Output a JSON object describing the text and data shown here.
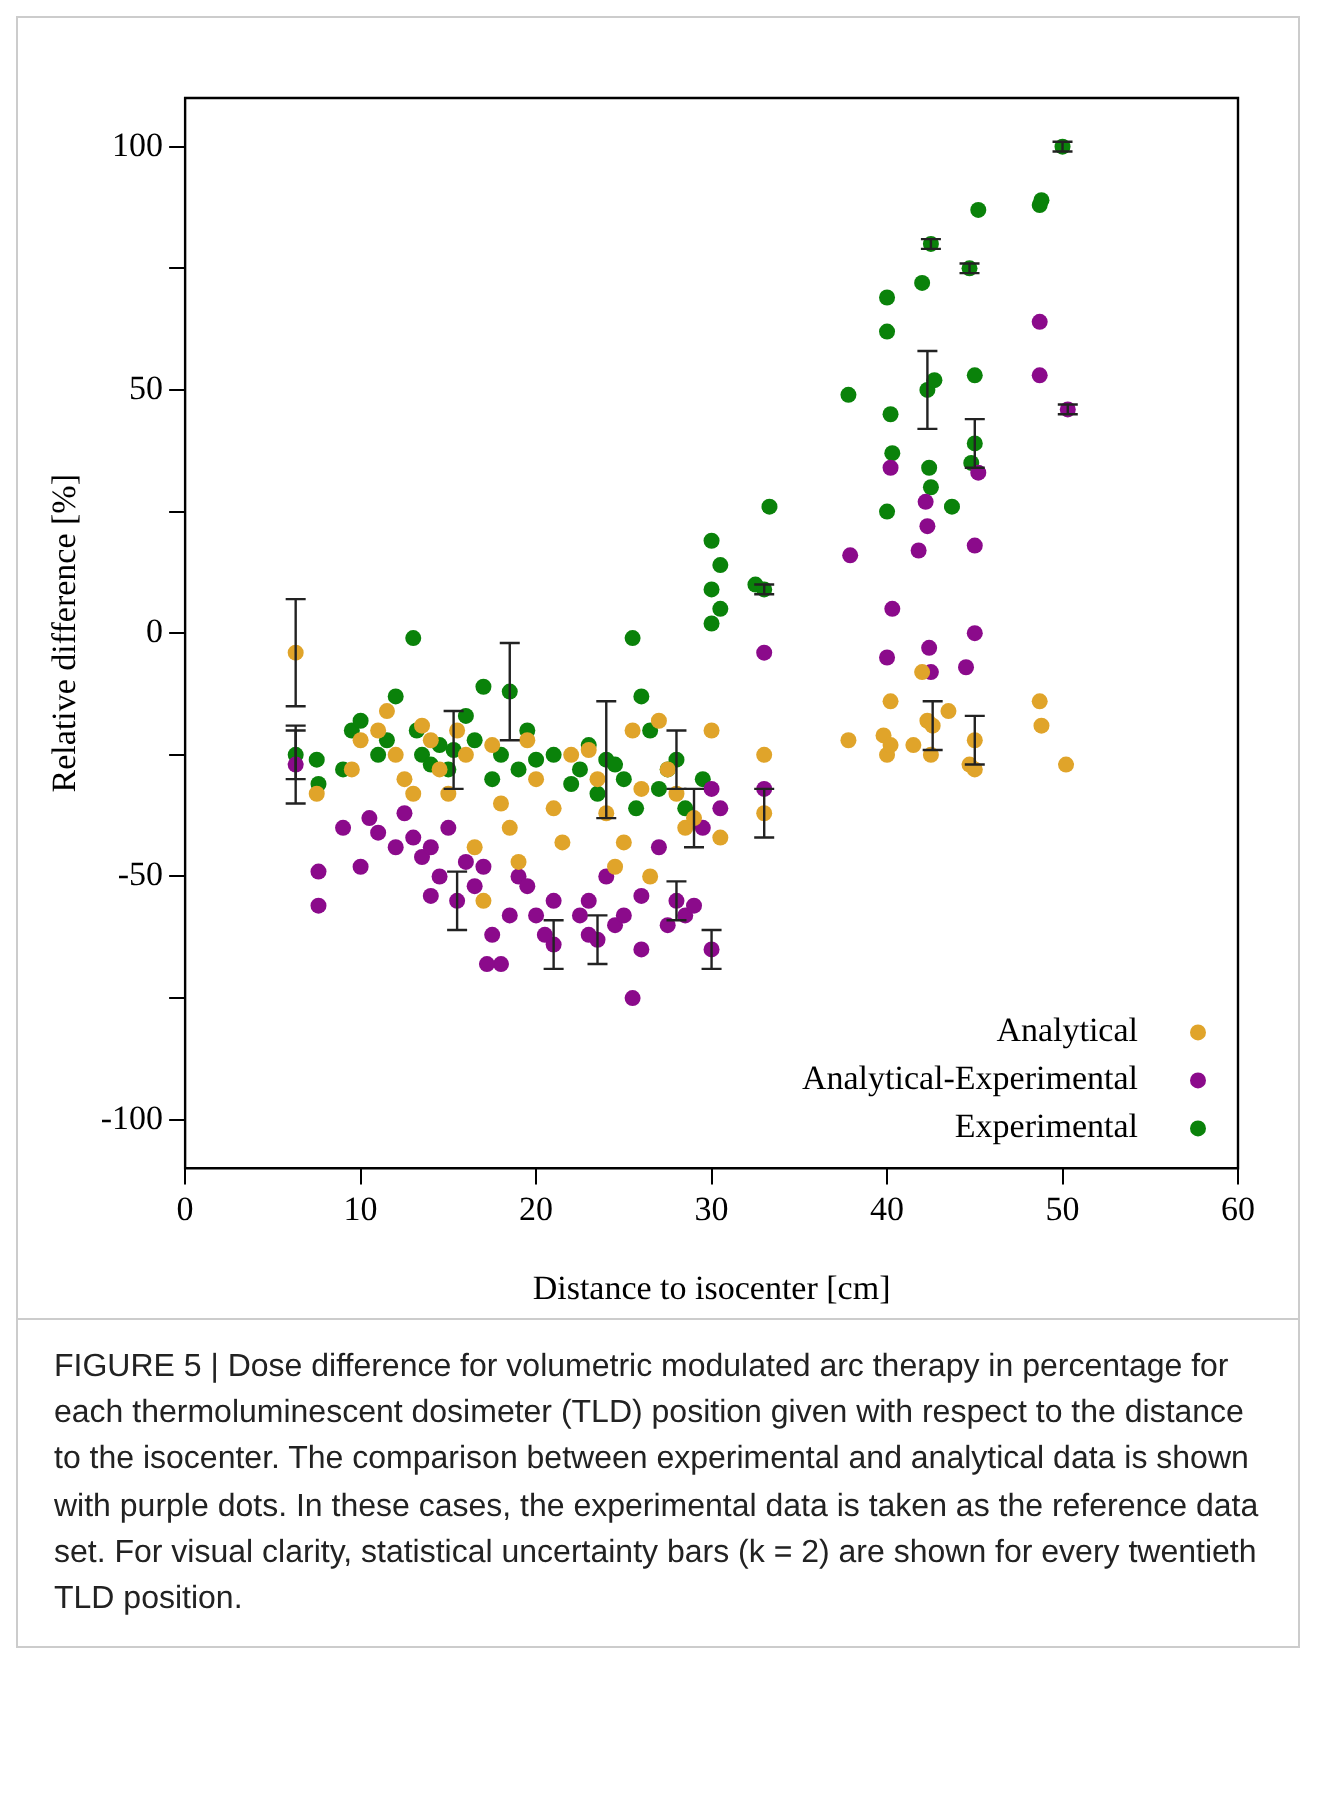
{
  "chart_data": {
    "type": "scatter",
    "xlabel": "Distance to isocenter [cm]",
    "ylabel": "Relative difference [%]",
    "xlim": [
      0,
      60
    ],
    "xticks": [
      0,
      10,
      20,
      30,
      40,
      50,
      60
    ],
    "ylim": [
      -110,
      110
    ],
    "yticks": [
      -100,
      {
        "value": -75,
        "label": null
      },
      -50,
      {
        "value": -25,
        "label": null
      },
      0,
      {
        "value": 25,
        "label": null
      },
      50,
      {
        "value": 75,
        "label": null
      },
      100
    ],
    "grid": false,
    "legend": "bottom right",
    "marker": "circle",
    "series": [
      {
        "name": "Analytical",
        "color": "#e0a42a",
        "x": [
          6.3,
          7.5,
          9.5,
          10,
          11,
          11.5,
          12,
          12.5,
          13,
          13.5,
          14,
          14.5,
          15,
          15.5,
          16,
          16.5,
          17,
          17.5,
          18,
          18.5,
          19,
          19.5,
          20,
          21,
          21.5,
          22,
          23,
          23.5,
          24,
          24.5,
          25,
          25.5,
          26,
          26.5,
          27,
          27.5,
          28,
          28.5,
          29,
          30,
          30.5,
          33,
          33,
          37.8,
          39.8,
          40,
          40.2,
          41.5,
          42,
          42.3,
          42.5,
          43.5,
          44.7,
          45,
          48.7,
          48.8,
          50.2,
          42.6,
          45,
          40.2
        ],
        "values": [
          -4,
          -33,
          -28,
          -22,
          -20,
          -16,
          -25,
          -30,
          -33,
          -19,
          -22,
          -28,
          -33,
          -20,
          -25,
          -44,
          -55,
          -23,
          -35,
          -40,
          -47,
          -22,
          -30,
          -36,
          -43,
          -25,
          -24,
          -30,
          -37,
          -48,
          -43,
          -20,
          -32,
          -50,
          -18,
          -28,
          -33,
          -40,
          -38,
          -20,
          -42,
          -25,
          -37,
          -22,
          -21,
          -25,
          -14,
          -23,
          -8,
          -18,
          -25,
          -16,
          -27,
          -28,
          -14,
          -19,
          -27,
          -19,
          -22,
          -23
        ],
        "errors": [
          11,
          null,
          null,
          null,
          null,
          null,
          null,
          null,
          null,
          null,
          null,
          null,
          null,
          null,
          null,
          null,
          null,
          null,
          null,
          null,
          null,
          null,
          null,
          null,
          null,
          null,
          null,
          null,
          null,
          null,
          null,
          null,
          null,
          null,
          null,
          null,
          null,
          null,
          6,
          null,
          null,
          null,
          5,
          null,
          null,
          null,
          null,
          null,
          null,
          null,
          null,
          null,
          null,
          null,
          null,
          null,
          null,
          5,
          5,
          null
        ]
      },
      {
        "name": "Analytical-Experimental",
        "color": "#8b0a8b",
        "x": [
          6.3,
          7.6,
          7.6,
          9,
          10,
          10.5,
          11,
          12,
          12.5,
          13,
          13.5,
          14,
          14.5,
          15,
          15.5,
          16,
          16.5,
          17,
          17.5,
          18,
          18.5,
          19,
          19.5,
          20,
          21,
          21,
          22.5,
          23,
          23.5,
          24,
          24.5,
          25,
          25.5,
          26,
          26,
          27,
          27.5,
          28,
          28.5,
          29.5,
          30,
          30,
          30.5,
          33,
          33,
          37.9,
          40,
          40.2,
          40.3,
          41.8,
          42.2,
          42.3,
          42.4,
          42.5,
          44.5,
          45,
          45,
          45.2,
          48.7,
          48.7,
          50.3,
          17.2,
          14,
          20.5,
          29,
          23
        ],
        "values": [
          -27,
          -49,
          -56,
          -40,
          -48,
          -38,
          -41,
          -44,
          -37,
          -42,
          -46,
          -44,
          -50,
          -40,
          -55,
          -47,
          -52,
          -48,
          -62,
          -68,
          -58,
          -50,
          -52,
          -58,
          -55,
          -64,
          -58,
          -55,
          -63,
          -50,
          -60,
          -58,
          -75,
          -65,
          -54,
          -44,
          -60,
          -55,
          -58,
          -40,
          -32,
          -65,
          -36,
          -4,
          -32,
          16,
          -5,
          34,
          5,
          17,
          27,
          22,
          -3,
          -8,
          -7,
          0,
          18,
          33,
          53,
          64,
          46,
          -68,
          -54,
          -62,
          -56,
          -62
        ],
        "errors": [
          8,
          null,
          null,
          null,
          null,
          null,
          null,
          null,
          null,
          null,
          null,
          null,
          null,
          null,
          6,
          null,
          null,
          null,
          null,
          null,
          null,
          null,
          null,
          null,
          null,
          5,
          null,
          null,
          5,
          null,
          null,
          null,
          null,
          null,
          null,
          null,
          null,
          4,
          null,
          null,
          null,
          4,
          null,
          null,
          null,
          null,
          null,
          null,
          null,
          null,
          null,
          null,
          null,
          null,
          null,
          null,
          null,
          null,
          null,
          null,
          1,
          null,
          null,
          null,
          null,
          null
        ]
      },
      {
        "name": "Experimental",
        "color": "#0a820a",
        "x": [
          6.3,
          7.5,
          7.6,
          9,
          9.5,
          10,
          11,
          11.5,
          12,
          13,
          13.2,
          13.5,
          14,
          14.5,
          15,
          15.3,
          16,
          16.5,
          17,
          17.5,
          18,
          18.5,
          19,
          19.5,
          20,
          21,
          22,
          22.5,
          23,
          23.5,
          24,
          24.5,
          25,
          25.5,
          25.7,
          26,
          26.5,
          27,
          27.5,
          28,
          28.5,
          29.5,
          30,
          30,
          30.5,
          30,
          30.5,
          32.5,
          33,
          33.3,
          37.8,
          40,
          40,
          40.2,
          40.3,
          40,
          42,
          42.3,
          42.5,
          42.5,
          42.4,
          43.7,
          44.7,
          45.2,
          45,
          45,
          48.7,
          48.8,
          50,
          44.8,
          42.7
        ],
        "values": [
          -25,
          -26,
          -31,
          -28,
          -20,
          -18,
          -25,
          -22,
          -13,
          -1,
          -20,
          -25,
          -27,
          -23,
          -28,
          -24,
          -17,
          -22,
          -11,
          -30,
          -25,
          -12,
          -28,
          -20,
          -26,
          -25,
          -31,
          -28,
          -23,
          -33,
          -26,
          -27,
          -30,
          -1,
          -36,
          -13,
          -20,
          -32,
          -28,
          -26,
          -36,
          -30,
          2,
          19,
          14,
          9,
          5,
          10,
          9,
          26,
          49,
          69,
          62,
          45,
          37,
          25,
          72,
          50,
          80,
          30,
          34,
          26,
          75,
          87,
          53,
          39,
          88,
          89,
          100,
          35,
          52
        ],
        "errors": [
          5,
          null,
          null,
          null,
          null,
          null,
          null,
          null,
          null,
          null,
          null,
          null,
          null,
          null,
          null,
          8,
          null,
          null,
          null,
          null,
          null,
          10,
          null,
          null,
          null,
          null,
          null,
          null,
          null,
          null,
          12,
          null,
          null,
          null,
          null,
          null,
          null,
          null,
          null,
          6,
          null,
          null,
          null,
          null,
          null,
          null,
          null,
          null,
          1,
          null,
          null,
          null,
          null,
          null,
          null,
          null,
          null,
          8,
          1,
          null,
          null,
          null,
          1,
          null,
          null,
          5,
          null,
          null,
          1,
          null,
          null
        ]
      }
    ],
    "annotations": [
      "FIGURE 5 | Dose difference for volumetric modulated arc therapy in percentage for each thermoluminescent dosimeter (TLD) position given with respect to the distance to the isocenter. The comparison between experimental and analytical data is shown with purple dots. In these cases, the experimental data is taken as the reference data set. For visual clarity, statistical uncertainty bars (k = 2) are shown for every twentieth TLD position."
    ]
  }
}
